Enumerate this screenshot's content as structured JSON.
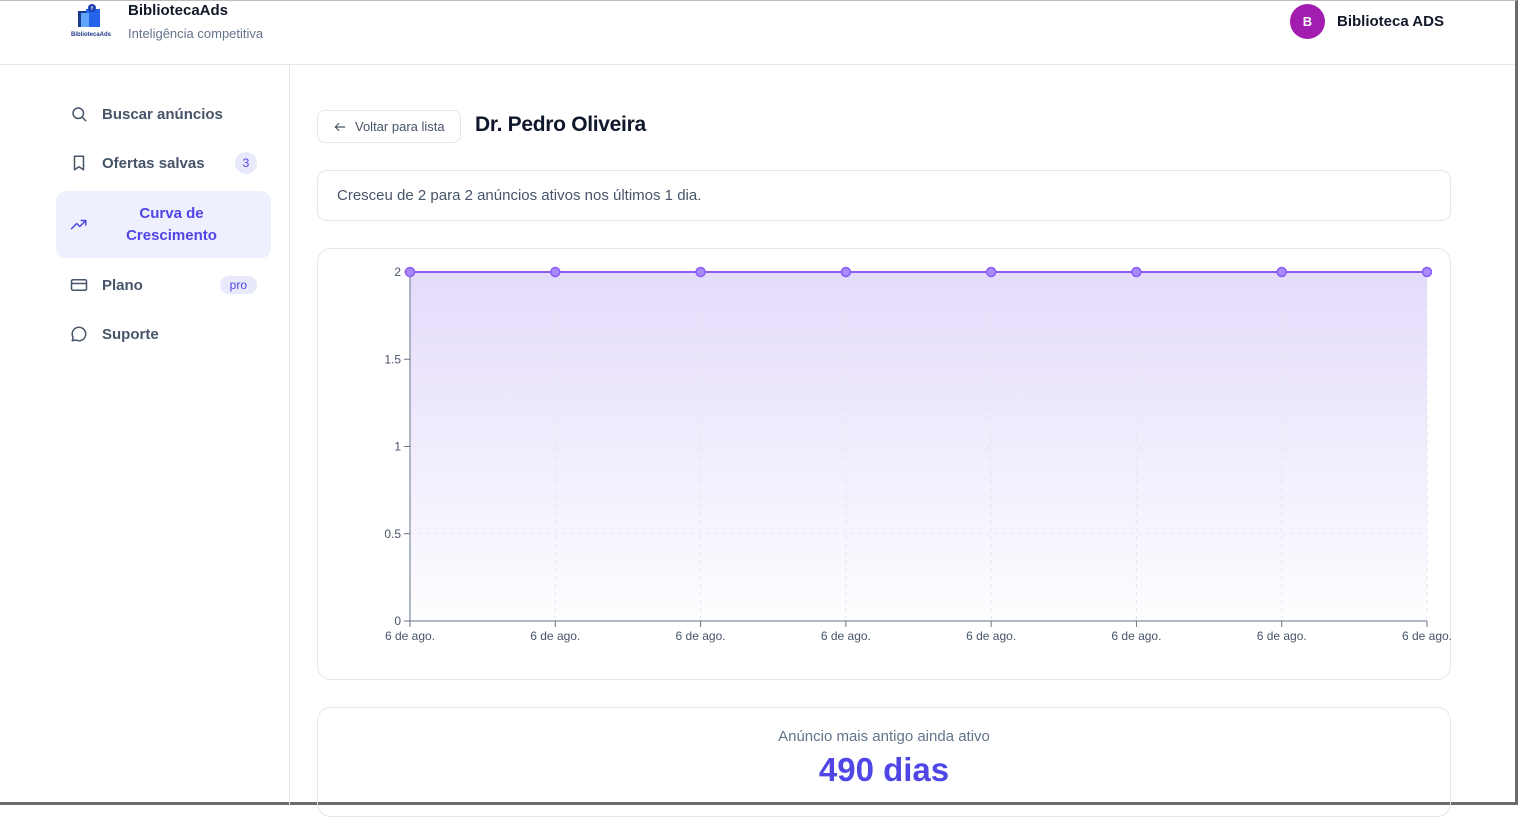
{
  "brand": {
    "name": "BibliotecaAds",
    "subtitle": "Inteligência competitiva",
    "logo_text": "BibliotecaAds"
  },
  "user": {
    "initial": "B",
    "name": "Biblioteca ADS",
    "avatar_color": "#a21caf"
  },
  "sidebar": {
    "items": [
      {
        "label": "Buscar anúncios",
        "icon": "search-icon"
      },
      {
        "label": "Ofertas salvas",
        "icon": "bookmark-icon",
        "badge": "3"
      },
      {
        "label": "Curva de Crescimento",
        "icon": "trending-up-icon",
        "active": true
      },
      {
        "label": "Plano",
        "icon": "credit-card-icon",
        "badge": "pro"
      },
      {
        "label": "Suporte",
        "icon": "chat-bubble-icon"
      }
    ]
  },
  "main": {
    "back_label": "Voltar para lista",
    "title": "Dr. Pedro Oliveira",
    "summary": "Cresceu de 2 para 2 anúncios ativos nos últimos 1 dia.",
    "stat_label": "Anúncio mais antigo ainda ativo",
    "stat_value": "490 dias"
  },
  "colors": {
    "accent": "#4f46e5",
    "line": "#8b5cf6",
    "area_top": "#e4dbfb"
  },
  "chart_data": {
    "type": "area",
    "x": [
      "6 de ago.",
      "6 de ago.",
      "6 de ago.",
      "6 de ago.",
      "6 de ago.",
      "6 de ago.",
      "6 de ago.",
      "6 de ago."
    ],
    "series": [
      {
        "values": [
          2,
          2,
          2,
          2,
          2,
          2,
          2,
          2
        ]
      }
    ],
    "yticks": [
      "0",
      "0.5",
      "1",
      "1.5",
      "2"
    ],
    "ylim": [
      0,
      2
    ],
    "title": "",
    "xlabel": "",
    "ylabel": "",
    "grid": true
  }
}
